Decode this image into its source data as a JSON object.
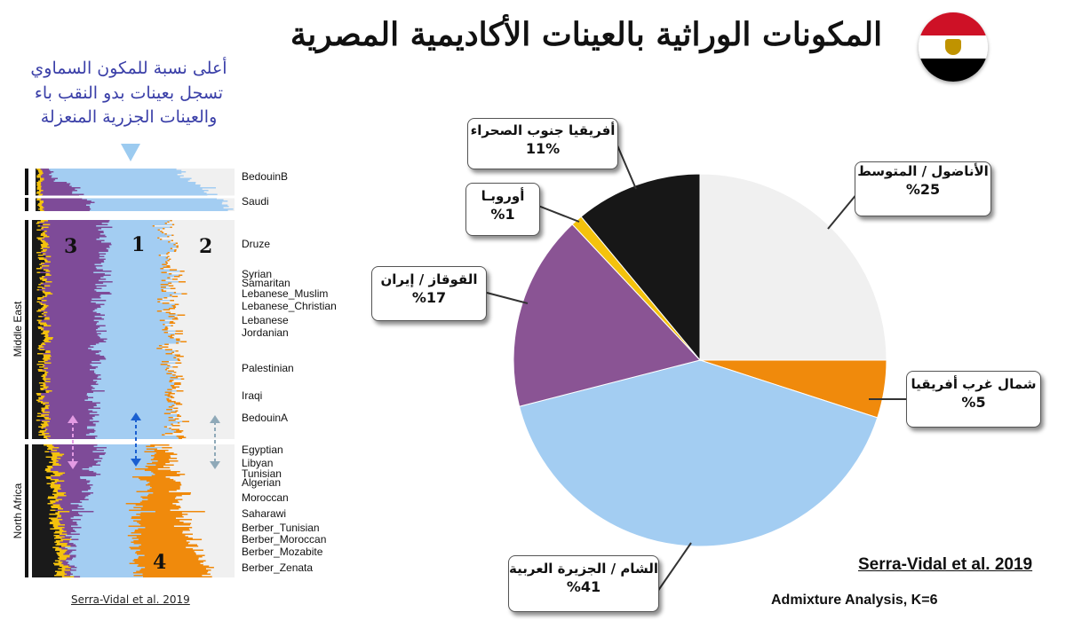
{
  "title": "المكونات الوراثية بالعينات الأكاديمية المصرية",
  "flag": {
    "colors": [
      "#ce1126",
      "#ffffff",
      "#000000"
    ],
    "emblem_color": "#c09300"
  },
  "note": {
    "line1": "أعلى نسبة للمكون السماوي",
    "line2": "تسجل بعينات بدو النقب باء",
    "line3": "والعينات الجزرية المنعزلة"
  },
  "admixture_panel": {
    "region_labels": [
      "Middle East",
      "North Africa"
    ],
    "component_numbers": [
      "3",
      "1",
      "2",
      "4"
    ],
    "populations": [
      "BedouinB",
      "Saudi",
      "Druze",
      "Syrian",
      "Samaritan",
      "Lebanese_Muslim",
      "Lebanese_Christian",
      "Lebanese",
      "Jordanian",
      "Palestinian",
      "Iraqi",
      "BedouinA",
      "Egyptian",
      "Libyan",
      "Tunisian",
      "Algerian",
      "Moroccan",
      "Saharawi",
      "Berber_Tunisian",
      "Berber_Moroccan",
      "Berber_Mozabite",
      "Berber_Zenata"
    ],
    "colors": {
      "levant": "#a3cdf2",
      "caucasus": "#7e4b98",
      "anatolia": "#f0f0f0",
      "north_africa": "#f08a0c",
      "ssa": "#1a1a1a",
      "europe": "#f4c20d"
    },
    "citation": "Serra-Vidal et al. 2019"
  },
  "chart_data": {
    "type": "pie",
    "title": "المكونات الوراثية بالعينات الأكاديمية المصرية",
    "slices": [
      {
        "label": "الأناضول / المتوسط",
        "value": 25,
        "value_text": "%25",
        "color": "#f0f0f0"
      },
      {
        "label": "شمال غرب أفريقيا",
        "value": 5,
        "value_text": "%5",
        "color": "#f08a0c"
      },
      {
        "label": "الشام / الجزيرة العربية",
        "value": 41,
        "value_text": "%41",
        "color": "#a3cdf2"
      },
      {
        "label": "القوقاز / إيران",
        "value": 17,
        "value_text": "%17",
        "color": "#8a5494"
      },
      {
        "label": "أوروبـا",
        "value": 1,
        "value_text": "%1",
        "color": "#f4c20d"
      },
      {
        "label": "أفريقيا جنوب الصحراء",
        "value": 11,
        "value_text": "11%",
        "color": "#171717"
      }
    ],
    "start_angle": "12 o'clock, clockwise",
    "legend": "callout boxes"
  },
  "citation": "Serra-Vidal et al. 2019",
  "method": "Admixture Analysis, K=6"
}
